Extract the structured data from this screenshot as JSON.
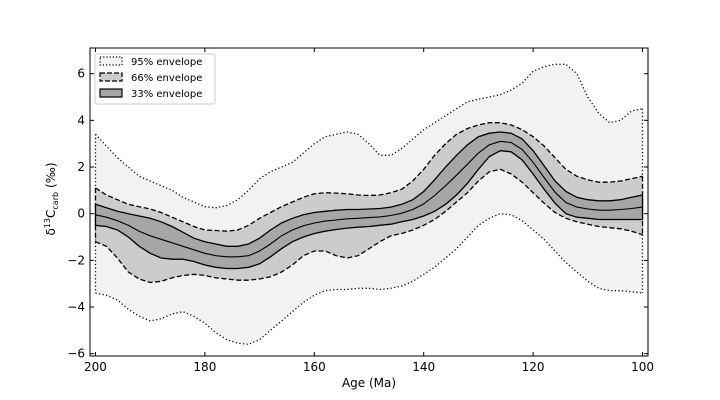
{
  "chart_data": {
    "type": "area",
    "xlabel": "Age (Ma)",
    "ylabel": "δ13C_carb (‰)",
    "ylabel_parts": {
      "delta": "δ",
      "sup": "13",
      "base": "C",
      "sub": "carb",
      "unit": "(‰)"
    },
    "xlim": [
      201,
      99
    ],
    "ylim": [
      -6.1,
      7.1
    ],
    "xticks": [
      200,
      180,
      160,
      140,
      120,
      100
    ],
    "yticks": [
      -6,
      -4,
      -2,
      0,
      2,
      4,
      6
    ],
    "grid": false,
    "legend_position": "top-left",
    "legend": [
      {
        "label": "95% envelope",
        "style": "dotted",
        "fill": "#f2f2f2"
      },
      {
        "label": "66% envelope",
        "style": "dashed",
        "fill": "#cccccc"
      },
      {
        "label": "33% envelope",
        "style": "solid",
        "fill": "#a6a6a6"
      }
    ],
    "x": [
      200,
      198,
      196,
      194,
      192,
      190,
      188,
      186,
      184,
      182,
      180,
      178,
      176,
      174,
      172,
      170,
      168,
      166,
      164,
      162,
      160,
      158,
      156,
      154,
      152,
      150,
      148,
      146,
      144,
      142,
      140,
      138,
      136,
      134,
      132,
      130,
      128,
      126,
      124,
      122,
      120,
      118,
      116,
      114,
      112,
      110,
      108,
      106,
      104,
      102,
      100
    ],
    "series": [
      {
        "name": "95% envelope",
        "upper": [
          3.4,
          2.9,
          2.4,
          2.0,
          1.6,
          1.4,
          1.2,
          1.0,
          0.7,
          0.5,
          0.3,
          0.25,
          0.35,
          0.6,
          1.0,
          1.5,
          1.8,
          2.0,
          2.2,
          2.6,
          3.0,
          3.3,
          3.4,
          3.5,
          3.4,
          3.0,
          2.5,
          2.5,
          2.8,
          3.2,
          3.6,
          3.9,
          4.2,
          4.5,
          4.8,
          4.9,
          5.0,
          5.1,
          5.3,
          5.6,
          6.1,
          6.3,
          6.4,
          6.4,
          6.0,
          5.0,
          4.3,
          3.9,
          4.0,
          4.4,
          4.5
        ],
        "lower": [
          -3.4,
          -3.5,
          -3.7,
          -4.1,
          -4.4,
          -4.6,
          -4.5,
          -4.3,
          -4.2,
          -4.4,
          -4.7,
          -5.1,
          -5.4,
          -5.55,
          -5.6,
          -5.4,
          -5.0,
          -4.6,
          -4.2,
          -3.8,
          -3.5,
          -3.3,
          -3.25,
          -3.25,
          -3.2,
          -3.2,
          -3.25,
          -3.2,
          -3.1,
          -2.9,
          -2.6,
          -2.3,
          -1.9,
          -1.5,
          -1.0,
          -0.5,
          -0.2,
          0.0,
          -0.05,
          -0.3,
          -0.7,
          -1.1,
          -1.6,
          -2.1,
          -2.5,
          -2.9,
          -3.2,
          -3.3,
          -3.3,
          -3.35,
          -3.4
        ]
      },
      {
        "name": "66% envelope",
        "upper": [
          1.1,
          0.8,
          0.6,
          0.4,
          0.3,
          0.2,
          0.05,
          -0.15,
          -0.35,
          -0.55,
          -0.7,
          -0.72,
          -0.75,
          -0.7,
          -0.5,
          -0.2,
          0.05,
          0.3,
          0.5,
          0.7,
          0.85,
          0.9,
          0.88,
          0.85,
          0.8,
          0.78,
          0.8,
          0.9,
          1.05,
          1.4,
          1.9,
          2.5,
          3.0,
          3.4,
          3.65,
          3.8,
          3.9,
          3.9,
          3.8,
          3.6,
          3.3,
          2.9,
          2.4,
          1.9,
          1.6,
          1.45,
          1.35,
          1.35,
          1.4,
          1.5,
          1.6
        ],
        "lower": [
          -1.2,
          -1.4,
          -1.9,
          -2.5,
          -2.8,
          -2.95,
          -2.9,
          -2.75,
          -2.65,
          -2.6,
          -2.65,
          -2.75,
          -2.8,
          -2.85,
          -2.85,
          -2.8,
          -2.7,
          -2.5,
          -2.2,
          -1.8,
          -1.6,
          -1.6,
          -1.8,
          -1.9,
          -1.8,
          -1.5,
          -1.2,
          -0.95,
          -0.85,
          -0.7,
          -0.5,
          -0.25,
          0.1,
          0.5,
          0.9,
          1.4,
          1.8,
          1.9,
          1.7,
          1.35,
          0.9,
          0.45,
          0.05,
          -0.2,
          -0.35,
          -0.45,
          -0.55,
          -0.6,
          -0.65,
          -0.75,
          -0.9
        ]
      },
      {
        "name": "33% envelope",
        "upper": [
          0.4,
          0.25,
          0.1,
          0.0,
          -0.1,
          -0.2,
          -0.35,
          -0.55,
          -0.8,
          -1.05,
          -1.2,
          -1.3,
          -1.4,
          -1.4,
          -1.3,
          -1.05,
          -0.7,
          -0.4,
          -0.2,
          -0.05,
          0.05,
          0.1,
          0.15,
          0.18,
          0.18,
          0.2,
          0.22,
          0.28,
          0.4,
          0.6,
          0.95,
          1.45,
          2.0,
          2.5,
          2.95,
          3.3,
          3.45,
          3.5,
          3.45,
          3.2,
          2.7,
          2.05,
          1.4,
          0.95,
          0.7,
          0.6,
          0.55,
          0.55,
          0.6,
          0.7,
          0.8
        ],
        "lower": [
          -0.5,
          -0.55,
          -0.7,
          -1.0,
          -1.4,
          -1.7,
          -1.9,
          -1.95,
          -1.95,
          -2.05,
          -2.2,
          -2.3,
          -2.35,
          -2.35,
          -2.3,
          -2.15,
          -1.85,
          -1.5,
          -1.2,
          -1.0,
          -0.85,
          -0.75,
          -0.68,
          -0.62,
          -0.58,
          -0.55,
          -0.5,
          -0.45,
          -0.35,
          -0.25,
          -0.1,
          0.1,
          0.4,
          0.8,
          1.3,
          1.9,
          2.45,
          2.7,
          2.65,
          2.3,
          1.7,
          1.05,
          0.45,
          0.0,
          -0.15,
          -0.2,
          -0.25,
          -0.25,
          -0.25,
          -0.25,
          -0.25
        ],
        "median": [
          -0.05,
          -0.15,
          -0.3,
          -0.5,
          -0.75,
          -0.95,
          -1.1,
          -1.25,
          -1.4,
          -1.55,
          -1.7,
          -1.8,
          -1.85,
          -1.85,
          -1.8,
          -1.6,
          -1.3,
          -0.95,
          -0.7,
          -0.52,
          -0.4,
          -0.32,
          -0.27,
          -0.22,
          -0.2,
          -0.17,
          -0.14,
          -0.08,
          0.02,
          0.18,
          0.42,
          0.78,
          1.2,
          1.65,
          2.12,
          2.6,
          2.95,
          3.1,
          3.05,
          2.75,
          2.2,
          1.55,
          0.92,
          0.48,
          0.28,
          0.2,
          0.15,
          0.15,
          0.18,
          0.22,
          0.28
        ]
      }
    ]
  }
}
